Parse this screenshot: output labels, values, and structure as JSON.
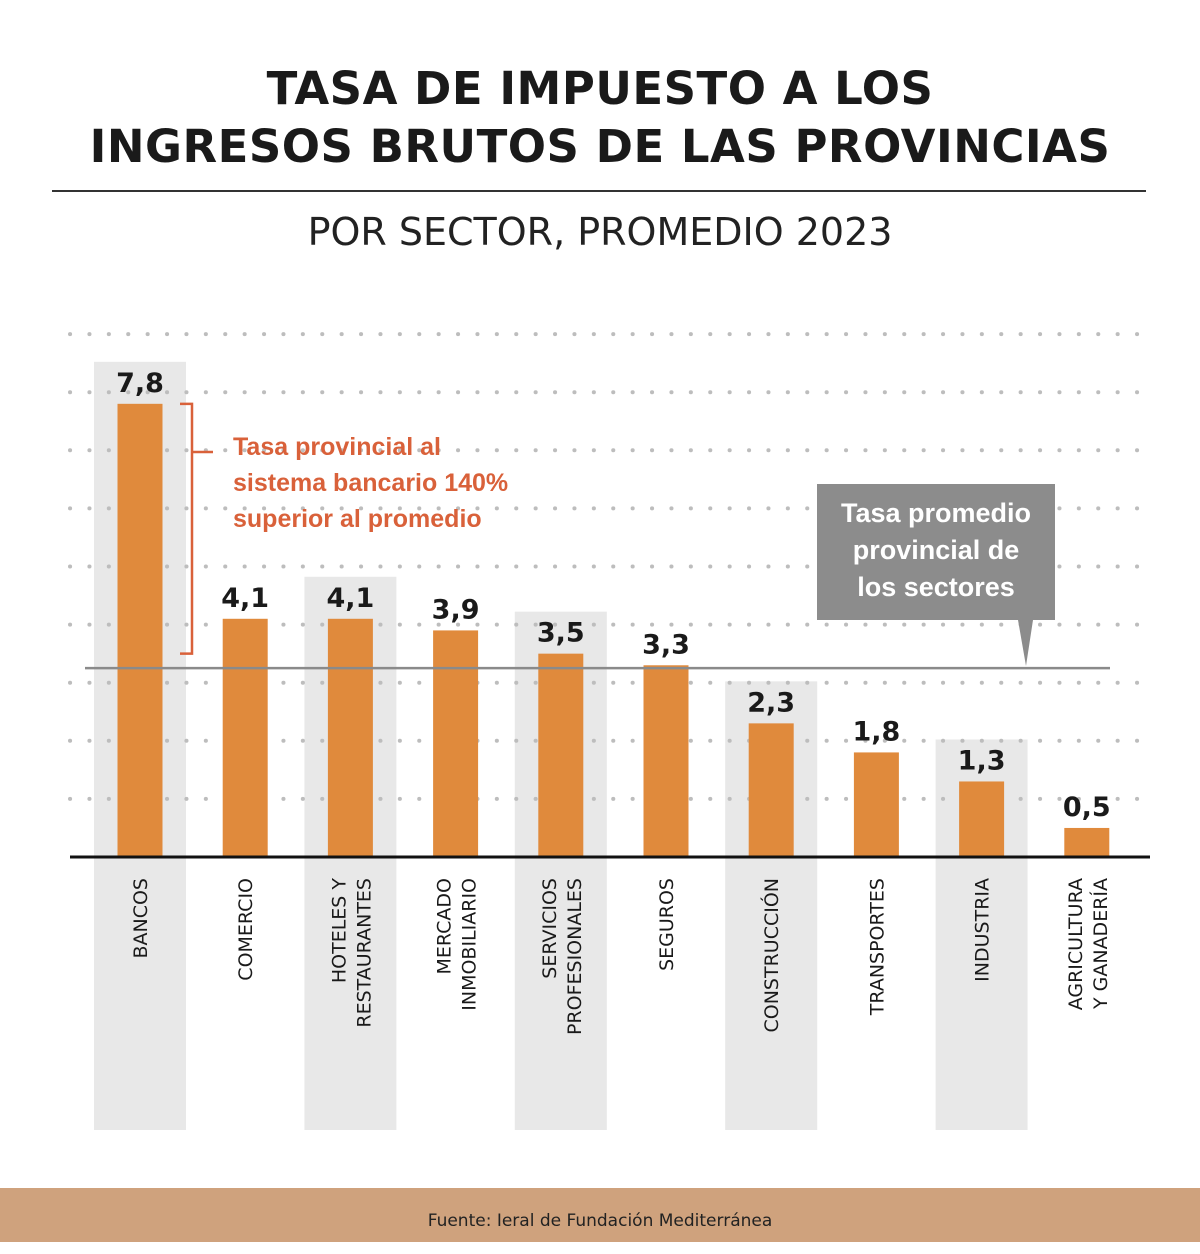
{
  "title_lines": [
    "TASA DE IMPUESTO A LOS",
    "INGRESOS BRUTOS DE LAS PROVINCIAS"
  ],
  "subtitle": "POR SECTOR, PROMEDIO 2023",
  "footer": "Fuente: Ieral de Fundación Mediterránea",
  "colors": {
    "bar": "#E08A3C",
    "band": "#E8E8E8",
    "annotation": "#D9613A",
    "callout": "#8C8C8C",
    "footer": "#CFA27D"
  },
  "chart_data": {
    "type": "bar",
    "categories": [
      [
        "BANCOS"
      ],
      [
        "COMERCIO"
      ],
      [
        "HOTELES Y",
        "RESTAURANTES"
      ],
      [
        "MERCADO",
        "INMOBILIARIO"
      ],
      [
        "SERVICIOS",
        "PROFESIONALES"
      ],
      [
        "SEGUROS"
      ],
      [
        "CONSTRUCCIÓN"
      ],
      [
        "TRANSPORTES"
      ],
      [
        "INDUSTRIA"
      ],
      [
        "AGRICULTURA",
        "Y GANADERÍA"
      ]
    ],
    "values": [
      7.8,
      4.1,
      4.1,
      3.9,
      3.5,
      3.3,
      2.3,
      1.8,
      1.3,
      0.5
    ],
    "value_labels": [
      "7,8",
      "4,1",
      "4,1",
      "3,9",
      "3,5",
      "3,3",
      "2,3",
      "1,8",
      "1,3",
      "0,5"
    ],
    "ylim": [
      0,
      9
    ],
    "grid": "dotted horizontal, every 1",
    "average_line": 3.25,
    "annotations": {
      "bancos": [
        "Tasa provincial al",
        "sistema bancario 140%",
        "superior al promedio"
      ],
      "average": [
        "Tasa promedio",
        "provincial de",
        "los sectores"
      ]
    }
  }
}
